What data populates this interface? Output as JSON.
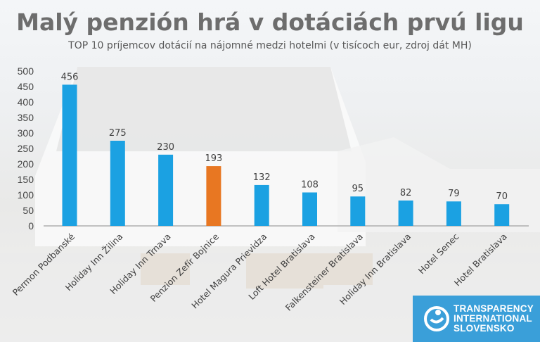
{
  "chart_data": {
    "type": "bar",
    "title": "Malý penzión hrá v dotáciách prvú ligu",
    "subtitle": "TOP 10 príjemcov dotácií na nájomné medzi hotelmi (v tisícoch eur, zdroj dát MH)",
    "categories": [
      "Permon Podbanské",
      "Holiday Inn Žilina",
      "Holiday Inn Trnava",
      "Penzion Zefír Bojnice",
      "Hotel Magura Prievidza",
      "Loft Hotel Bratislava",
      "Falkensteiner Bratislava",
      "Holiday Inn Bratislava",
      "Hotel Senec",
      "Hotel Bratislava"
    ],
    "values": [
      456,
      275,
      230,
      193,
      132,
      108,
      95,
      82,
      79,
      70
    ],
    "highlight_index": 3,
    "colors": {
      "bar": "#1ba1e2",
      "highlight": "#e87722"
    },
    "ylim": [
      0,
      500
    ],
    "yticks": [
      0,
      50,
      100,
      150,
      200,
      250,
      300,
      350,
      400,
      450,
      500
    ],
    "grid": false,
    "xlabel": "",
    "ylabel": ""
  },
  "logo": {
    "lines": [
      "TRANSPARENCY",
      "INTERNATIONAL",
      "SLOVENSKO"
    ]
  }
}
